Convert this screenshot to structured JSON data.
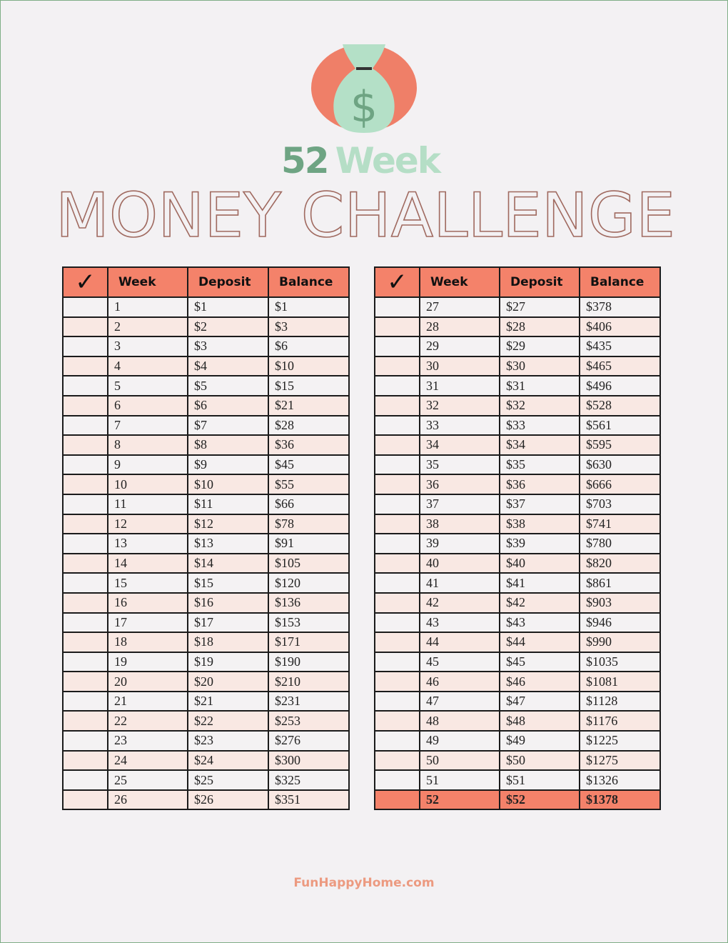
{
  "title": {
    "number": "52",
    "word": "Week",
    "subtitle": "MONEY CHALLENGE"
  },
  "icons": {
    "logo": "money-bag-icon",
    "check": "checkmark-icon"
  },
  "colors": {
    "header": "#f4826a",
    "stripe": "#f9e8e3",
    "green_dark": "#6ea483",
    "green_light": "#b5dec6",
    "title": "#a06a60"
  },
  "table": {
    "headers": {
      "check": "✓",
      "week": "Week",
      "deposit": "Deposit",
      "balance": "Balance"
    },
    "left_rows": [
      [
        "1",
        "$1",
        "$1"
      ],
      [
        "2",
        "$2",
        "$3"
      ],
      [
        "3",
        "$3",
        "$6"
      ],
      [
        "4",
        "$4",
        "$10"
      ],
      [
        "5",
        "$5",
        "$15"
      ],
      [
        "6",
        "$6",
        "$21"
      ],
      [
        "7",
        "$7",
        "$28"
      ],
      [
        "8",
        "$8",
        "$36"
      ],
      [
        "9",
        "$9",
        "$45"
      ],
      [
        "10",
        "$10",
        "$55"
      ],
      [
        "11",
        "$11",
        "$66"
      ],
      [
        "12",
        "$12",
        "$78"
      ],
      [
        "13",
        "$13",
        "$91"
      ],
      [
        "14",
        "$14",
        "$105"
      ],
      [
        "15",
        "$15",
        "$120"
      ],
      [
        "16",
        "$16",
        "$136"
      ],
      [
        "17",
        "$17",
        "$153"
      ],
      [
        "18",
        "$18",
        "$171"
      ],
      [
        "19",
        "$19",
        "$190"
      ],
      [
        "20",
        "$20",
        "$210"
      ],
      [
        "21",
        "$21",
        "$231"
      ],
      [
        "22",
        "$22",
        "$253"
      ],
      [
        "23",
        "$23",
        "$276"
      ],
      [
        "24",
        "$24",
        "$300"
      ],
      [
        "25",
        "$25",
        "$325"
      ],
      [
        "26",
        "$26",
        "$351"
      ]
    ],
    "right_rows": [
      [
        "27",
        "$27",
        "$378"
      ],
      [
        "28",
        "$28",
        "$406"
      ],
      [
        "29",
        "$29",
        "$435"
      ],
      [
        "30",
        "$30",
        "$465"
      ],
      [
        "31",
        "$31",
        "$496"
      ],
      [
        "32",
        "$32",
        "$528"
      ],
      [
        "33",
        "$33",
        "$561"
      ],
      [
        "34",
        "$34",
        "$595"
      ],
      [
        "35",
        "$35",
        "$630"
      ],
      [
        "36",
        "$36",
        "$666"
      ],
      [
        "37",
        "$37",
        "$703"
      ],
      [
        "38",
        "$38",
        "$741"
      ],
      [
        "39",
        "$39",
        "$780"
      ],
      [
        "40",
        "$40",
        "$820"
      ],
      [
        "41",
        "$41",
        "$861"
      ],
      [
        "42",
        "$42",
        "$903"
      ],
      [
        "43",
        "$43",
        "$946"
      ],
      [
        "44",
        "$44",
        "$990"
      ],
      [
        "45",
        "$45",
        "$1035"
      ],
      [
        "46",
        "$46",
        "$1081"
      ],
      [
        "47",
        "$47",
        "$1128"
      ],
      [
        "48",
        "$48",
        "$1176"
      ],
      [
        "49",
        "$49",
        "$1225"
      ],
      [
        "50",
        "$50",
        "$1275"
      ],
      [
        "51",
        "$51",
        "$1326"
      ],
      [
        "52",
        "$52",
        "$1378"
      ]
    ]
  },
  "footer": "FunHappyHome.com"
}
